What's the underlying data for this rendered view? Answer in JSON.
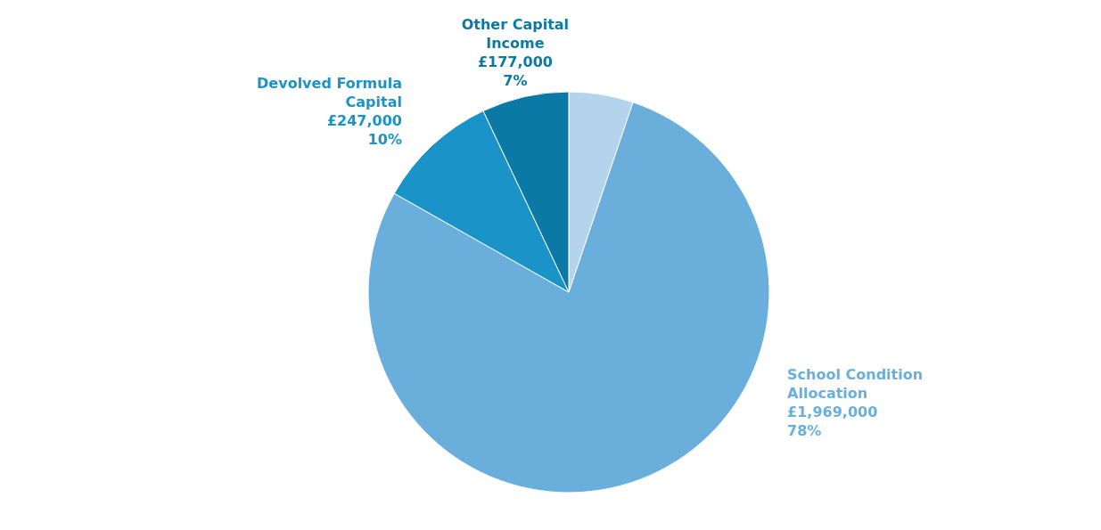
{
  "chart_data": {
    "type": "pie",
    "categories": [
      null,
      "School Condition Allocation",
      "Devolved Formula Capital",
      "Other Capital Income"
    ],
    "values": [
      131000,
      1969000,
      247000,
      177000
    ],
    "colors": [
      "#b4d3ec",
      "#6aafdc",
      "#1a94c8",
      "#0b79a6"
    ],
    "value_labels": [
      null,
      "£1,969,000\n78%",
      "£247,000\n10%",
      "£177,000\n7%"
    ]
  }
}
